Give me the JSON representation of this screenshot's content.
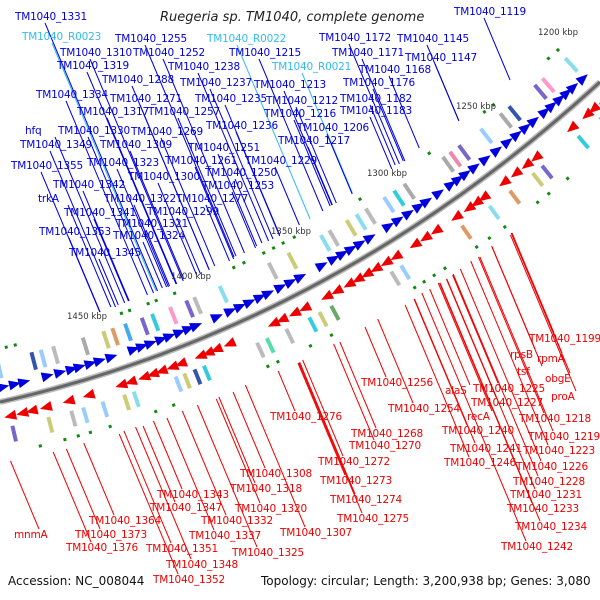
{
  "title": "Ruegeria sp. TM1040, complete genome",
  "footer": {
    "accession": "Accession: NC_008044",
    "topology": "Topology: circular; Length: 3,200,938 bp; Genes: 3,080"
  },
  "colors": {
    "forward": "#0000dd",
    "reverse": "#ee0000",
    "rna": "#33bbee",
    "backbone": "#777777",
    "marker": "#118811"
  },
  "kbp_marks": [
    "1200 kbp",
    "1250 kbp",
    "1300 kbp",
    "1350 kbp",
    "1400 kbp",
    "1450 kbp"
  ],
  "forward_labels": [
    "TM1040_1331",
    "TM1040_R0023",
    "TM1040_1255",
    "TM1040_R0022",
    "TM1040_1310",
    "TM1040_1252",
    "TM1040_1215",
    "TM1040_1319",
    "TM1040_1238",
    "TM1040_R0021",
    "TM1040_1288",
    "TM1040_1237",
    "TM1040_1213",
    "TM1040_1334",
    "TM1040_1271",
    "TM1040_1235",
    "TM1040_1212",
    "TM1040_1317",
    "TM1040_1257",
    "TM1040_1216",
    "hfq",
    "TM1040_1330",
    "TM1040_1269",
    "TM1040_1236",
    "TM1040_1206",
    "TM1040_1349",
    "TM1040_1309",
    "TM1040_1251",
    "TM1040_1217",
    "TM1040_1229",
    "TM1040_1261",
    "TM1040_1355",
    "TM1040_1323",
    "TM1040_1250",
    "TM1040_1300",
    "TM1040_1342",
    "TM1040_1253",
    "trkA",
    "TM1040_1322",
    "TM1040_1277",
    "TM1040_1341",
    "TM1040_1299",
    "TM1040_1321",
    "TM1040_1353",
    "TM1040_1324",
    "TM1040_1345",
    "TM1040_1119",
    "TM1040_1172",
    "TM1040_1145",
    "TM1040_1171",
    "TM1040_1147",
    "TM1040_1168",
    "TM1040_1176",
    "TM1040_1182",
    "TM1040_1183"
  ],
  "rna_labels": [
    "TM1040_R0023",
    "TM1040_R0022",
    "TM1040_R0021"
  ],
  "reverse_labels": [
    "TM1040_1199",
    "rpsB",
    "rpmA",
    "tsf",
    "obgE",
    "proA",
    "TM1040_1256",
    "alaS",
    "TM1040_1225",
    "TM1040_1227",
    "TM1040_1254",
    "recA",
    "TM1040_1218",
    "TM1040_1240",
    "TM1040_1219",
    "TM1040_1276",
    "TM1040_1268",
    "TM1040_1241",
    "TM1040_1223",
    "TM1040_1270",
    "TM1040_1246",
    "TM1040_1226",
    "TM1040_1272",
    "TM1040_1228",
    "TM1040_1308",
    "TM1040_1273",
    "TM1040_1231",
    "TM1040_1318",
    "TM1040_1274",
    "TM1040_1233",
    "TM1040_1343",
    "TM1040_1320",
    "TM1040_1347",
    "TM1040_1364",
    "TM1040_1275",
    "TM1040_1234",
    "TM1040_1332",
    "TM1040_1307",
    "TM1040_1337",
    "mnmA",
    "TM1040_1373",
    "TM1040_1242",
    "TM1040_1376",
    "TM1040_1351",
    "TM1040_1325",
    "TM1040_1348",
    "TM1040_1352"
  ]
}
